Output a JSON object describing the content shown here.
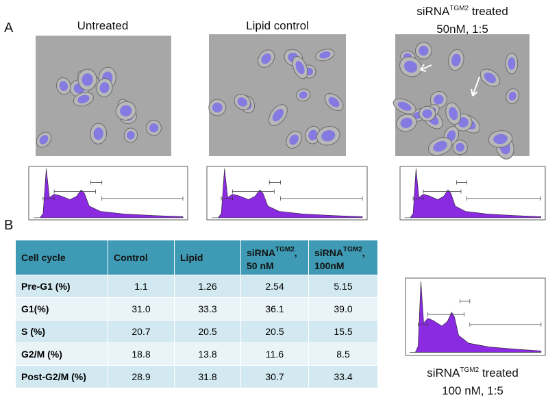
{
  "panel_labels": [
    "A",
    "B"
  ],
  "images": [
    {
      "caption": "Untreated"
    },
    {
      "caption": "Lipid control"
    },
    {
      "caption": {
        "base": "siRNA",
        "sup": "TGM2",
        "rest": " treated",
        "line2": "50nM, 1:5"
      }
    }
  ],
  "bottom_caption": {
    "base": "siRNA",
    "sup": "TGM2",
    "rest": " treated",
    "line2": "100 nM, 1:5"
  },
  "table": {
    "header": [
      "Cell cycle",
      "Control",
      "Lipid",
      {
        "base": "siRNA",
        "sup": "TGM2",
        "rest": ",",
        "line2": "50 nM"
      },
      {
        "base": "siRNA",
        "sup": "TGM2",
        "rest": ",",
        "line2": "100nM"
      }
    ],
    "rows": [
      [
        "Pre-G1 (%)",
        "1.1",
        "1.26",
        "2.54",
        "5.15"
      ],
      [
        "G1(%)",
        "31.0",
        "33.3",
        "36.1",
        "39.0"
      ],
      [
        "S (%)",
        "20.7",
        "20.5",
        "20.5",
        "15.5"
      ],
      [
        "G2/M (%)",
        "18.8",
        "13.8",
        "11.6",
        "8.5"
      ],
      [
        "Post-G2/M (%)",
        "28.9",
        "31.8",
        "30.7",
        "33.4"
      ]
    ]
  }
}
